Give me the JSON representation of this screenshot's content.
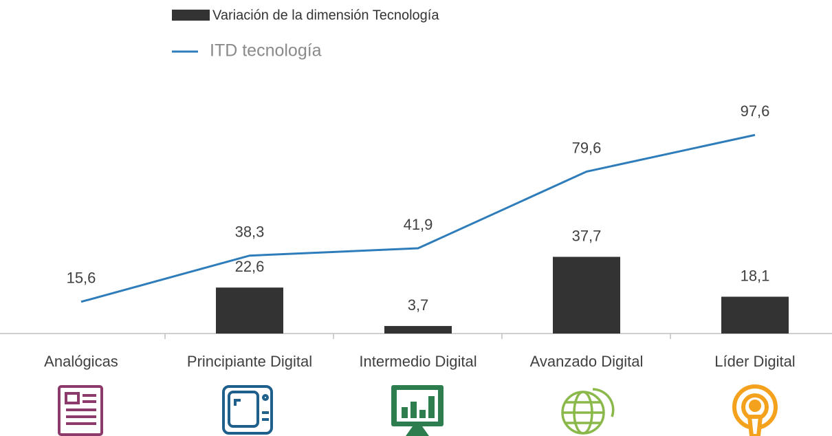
{
  "chart_data": {
    "type": "bar-line",
    "categories": [
      "Analógicas",
      "Principiante Digital",
      "Intermedio Digital",
      "Avanzado Digital",
      "Líder Digital"
    ],
    "series": [
      {
        "name": "Variación de la dimensión Tecnología",
        "type": "bar",
        "color": "#333333",
        "values": [
          null,
          22.6,
          3.7,
          37.7,
          18.1
        ],
        "value_labels": [
          null,
          "22,6",
          "3,7",
          "37,7",
          "18,1"
        ]
      },
      {
        "name": "ITD tecnología",
        "type": "line",
        "color": "#2e7dba",
        "values": [
          15.6,
          38.3,
          41.9,
          79.6,
          97.6
        ],
        "value_labels": [
          "15,6",
          "38,3",
          "41,9",
          "79,6",
          "97,6"
        ]
      }
    ],
    "ylim": [
      0,
      120
    ],
    "legend": "top"
  }
}
